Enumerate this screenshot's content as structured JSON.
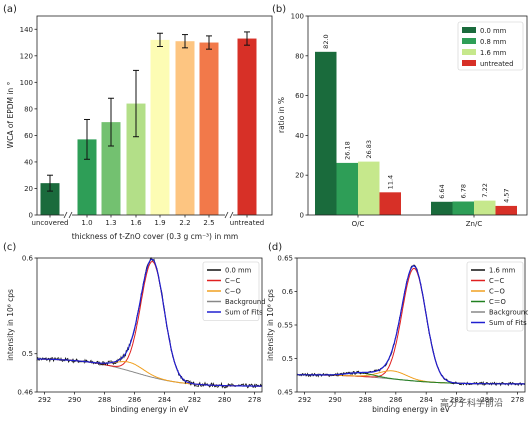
{
  "chart_data": [
    {
      "panel": "(a)",
      "type": "bar",
      "xlabel": "thickness of t-ZnO cover (0.3 g cm⁻³) in mm",
      "ylabel": "WCA of EPDM in °",
      "ylim": [
        0,
        150
      ],
      "yticks": [
        0,
        20,
        40,
        60,
        80,
        100,
        120,
        140
      ],
      "grid": false,
      "categories": [
        "uncovered",
        "1.0",
        "1.3",
        "1.6",
        "1.9",
        "2.2",
        "2.5",
        "untreated"
      ],
      "values": [
        24,
        57,
        70,
        84,
        132,
        131,
        130,
        133
      ],
      "errors": [
        6,
        15,
        18,
        25,
        5,
        5,
        5,
        5
      ],
      "colors": [
        "#1a6b3c",
        "#2e9e57",
        "#73c170",
        "#b3df88",
        "#fdfcb4",
        "#fdc581",
        "#f2794a",
        "#d73027"
      ]
    },
    {
      "panel": "(b)",
      "type": "bar",
      "xlabel": "",
      "ylabel": "ratio in %",
      "ylim": [
        0,
        100
      ],
      "yticks": [
        0,
        20,
        40,
        60,
        80,
        100
      ],
      "grid": false,
      "categories": [
        "O/C",
        "Zn/C"
      ],
      "legend_position": "top-right",
      "series": [
        {
          "name": "0.0 mm",
          "color": "#1a6b3c",
          "values": [
            82.0,
            6.64
          ],
          "labels": [
            "82.0",
            "6.64"
          ]
        },
        {
          "name": "0.8 mm",
          "color": "#2e9e57",
          "values": [
            26.18,
            6.78
          ],
          "labels": [
            "26.18",
            "6.78"
          ]
        },
        {
          "name": "1.6 mm",
          "color": "#c6e88c",
          "values": [
            26.83,
            7.22
          ],
          "labels": [
            "26.83",
            "7.22"
          ]
        },
        {
          "name": "untreated",
          "color": "#d73027",
          "values": [
            11.4,
            4.57
          ],
          "labels": [
            "11.4",
            "4.57"
          ]
        }
      ]
    },
    {
      "panel": "(c)",
      "type": "line",
      "xlabel": "binding energy in eV",
      "ylabel": "intensity in 10⁶ cps",
      "xlim": [
        292.5,
        277.5
      ],
      "xticks": [
        292,
        290,
        288,
        286,
        284,
        282,
        280,
        278
      ],
      "ylim": [
        0.46,
        0.6
      ],
      "yticks": [
        0.5,
        0.6
      ],
      "ytick_labels": [
        "0.5",
        "0.6"
      ],
      "ytick_extra": {
        "value": 0.46,
        "label": "0.46"
      },
      "legend_position": "top-right",
      "series": [
        {
          "name": "0.0 mm",
          "color": "#111111"
        },
        {
          "name": "C−C",
          "color": "#e02020"
        },
        {
          "name": "C−O",
          "color": "#f0a020"
        },
        {
          "name": "Background",
          "color": "#888888"
        },
        {
          "name": "Sum of Fits",
          "color": "#2020d0"
        }
      ],
      "model": {
        "bg_start": 0.495,
        "bg_end": 0.466,
        "bg_center": 286,
        "bg_width": 1.6,
        "peaks": [
          {
            "name": "C−C",
            "center": 284.8,
            "amp": 0.121,
            "sigma": 0.78
          },
          {
            "name": "C−O",
            "center": 286.3,
            "amp": 0.009,
            "sigma": 0.9
          }
        ]
      }
    },
    {
      "panel": "(d)",
      "type": "line",
      "xlabel": "binding energy in eV",
      "ylabel": "intensity in 10⁶ cps",
      "xlim": [
        292.5,
        277.5
      ],
      "xticks": [
        292,
        290,
        288,
        286,
        284,
        282,
        280,
        278
      ],
      "ylim": [
        0.45,
        0.65
      ],
      "yticks": [
        0.45,
        0.5,
        0.55,
        0.6,
        0.65
      ],
      "ytick_labels": [
        "0.45",
        "0.5",
        "0.55",
        "0.6",
        "0.65"
      ],
      "legend_position": "top-right",
      "series": [
        {
          "name": "1.6 mm",
          "color": "#111111"
        },
        {
          "name": "C−C",
          "color": "#e02020"
        },
        {
          "name": "C−O",
          "color": "#f0a020"
        },
        {
          "name": "C＝O",
          "color": "#208020"
        },
        {
          "name": "Background",
          "color": "#888888"
        },
        {
          "name": "Sum of Fits",
          "color": "#2020d0"
        }
      ],
      "model": {
        "bg_start": 0.476,
        "bg_end": 0.462,
        "bg_center": 286,
        "bg_width": 1.6,
        "peaks": [
          {
            "name": "C−C",
            "center": 284.8,
            "amp": 0.168,
            "sigma": 0.78
          },
          {
            "name": "C−O",
            "center": 286.2,
            "amp": 0.012,
            "sigma": 0.9
          },
          {
            "name": "C＝O",
            "center": 288.3,
            "amp": 0.005,
            "sigma": 0.9
          }
        ]
      }
    }
  ],
  "watermark": "高分子科学前沿"
}
